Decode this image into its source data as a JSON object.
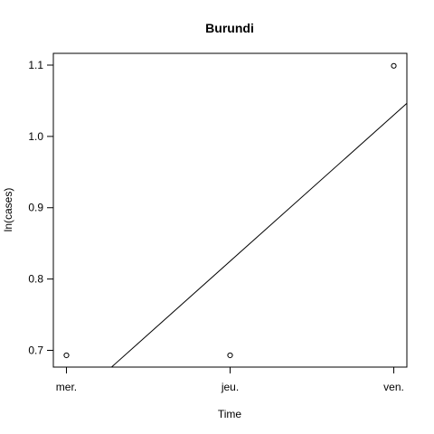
{
  "chart_data": {
    "type": "scatter",
    "title": "Burundi",
    "xlabel": "Time",
    "ylabel": "ln(cases)",
    "x_ticks": [
      "mer.",
      "jeu.",
      "ven."
    ],
    "y_ticks": [
      "0.7",
      "0.8",
      "0.9",
      "1.0",
      "1.1"
    ],
    "xlim": [
      -0.08,
      2.08
    ],
    "ylim": [
      0.6765,
      1.1165
    ],
    "series": [
      {
        "points": [
          {
            "x": "mer.",
            "y": 0.693
          },
          {
            "x": "jeu.",
            "y": 0.693
          },
          {
            "x": "ven.",
            "y": 1.099
          }
        ]
      }
    ],
    "fit_line": {
      "from_x": 0.0,
      "to_x": 2.08,
      "intercept": 0.62,
      "slope": 0.205
    },
    "grid": false,
    "legend": "none"
  }
}
